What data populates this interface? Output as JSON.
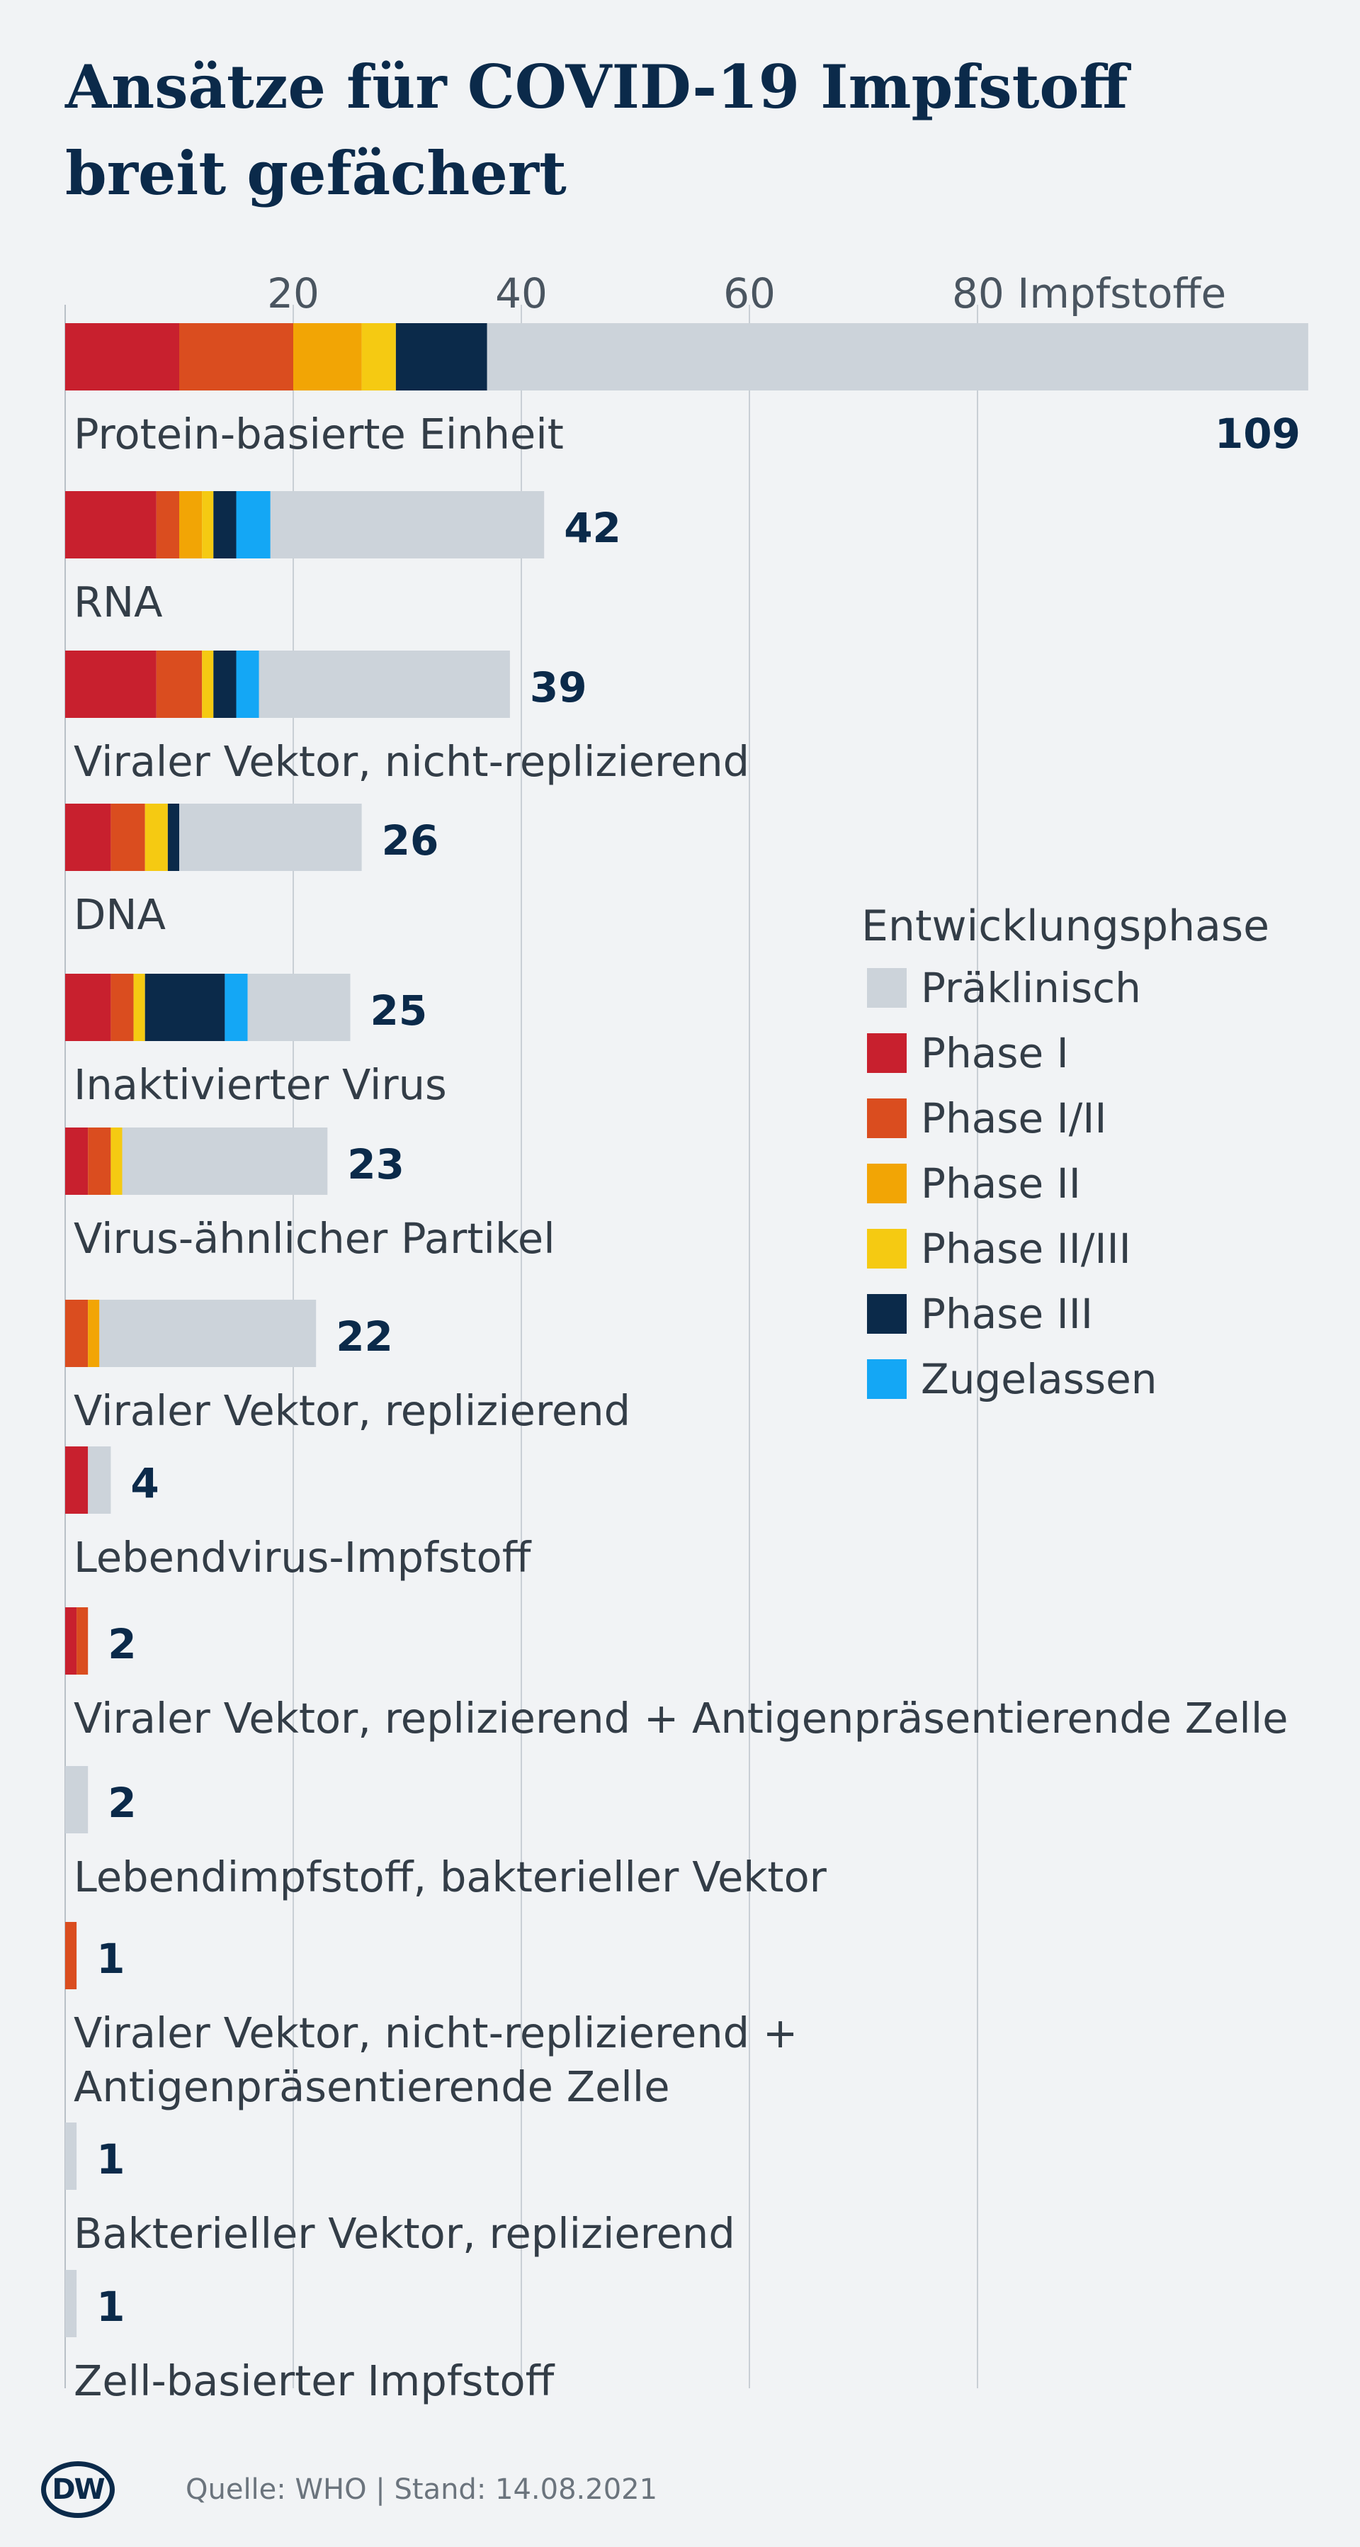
{
  "title_line1": "Ansätze für COVID-19 Impfstoff",
  "title_line2": "breit gefächert",
  "source": "Quelle: WHO | Stand: 14.08.2021",
  "logo_text": "DW",
  "chart_data": {
    "type": "bar",
    "orientation": "horizontal",
    "stacked": true,
    "x_ticks": [
      "20",
      "40",
      "60",
      "80 Impfstoffe"
    ],
    "x_tick_values": [
      20,
      40,
      60,
      80
    ],
    "xlim": [
      0,
      109
    ],
    "grid": true,
    "legend_title": "Entwicklungsphase",
    "legend_position": "right",
    "series": [
      {
        "name": "Präklinisch",
        "color": "#ccd3da"
      },
      {
        "name": "Phase I",
        "color": "#c8202e"
      },
      {
        "name": "Phase I/II",
        "color": "#da4d1f"
      },
      {
        "name": "Phase II",
        "color": "#f2a505"
      },
      {
        "name": "Phase II/III",
        "color": "#f5ca12"
      },
      {
        "name": "Phase III",
        "color": "#0b2a4a"
      },
      {
        "name": "Zugelassen",
        "color": "#14a7f5"
      }
    ],
    "categories": [
      {
        "label": "Protein-basierte Einheit",
        "total": 109,
        "phases": {
          "Phase I": 10,
          "Phase I/II": 10,
          "Phase II": 6,
          "Phase II/III": 3,
          "Phase III": 8,
          "Zugelassen": 0,
          "Präklinisch": 72
        }
      },
      {
        "label": "RNA",
        "total": 42,
        "phases": {
          "Phase I": 8,
          "Phase I/II": 2,
          "Phase II": 2,
          "Phase II/III": 1,
          "Phase III": 2,
          "Zugelassen": 3,
          "Präklinisch": 24
        }
      },
      {
        "label": "Viraler Vektor, nicht-replizierend",
        "total": 39,
        "phases": {
          "Phase I": 8,
          "Phase I/II": 4,
          "Phase II": 0,
          "Phase II/III": 1,
          "Phase III": 2,
          "Zugelassen": 2,
          "Präklinisch": 22
        }
      },
      {
        "label": "DNA",
        "total": 26,
        "phases": {
          "Phase I": 4,
          "Phase I/II": 3,
          "Phase II": 0,
          "Phase II/III": 2,
          "Phase III": 1,
          "Zugelassen": 0,
          "Präklinisch": 16
        }
      },
      {
        "label": "Inaktivierter Virus",
        "total": 25,
        "phases": {
          "Phase I": 4,
          "Phase I/II": 2,
          "Phase II": 0,
          "Phase II/III": 1,
          "Phase III": 7,
          "Zugelassen": 2,
          "Präklinisch": 9
        }
      },
      {
        "label": "Virus-ähnlicher Partikel",
        "total": 23,
        "phases": {
          "Phase I": 2,
          "Phase I/II": 2,
          "Phase II": 0,
          "Phase II/III": 1,
          "Phase III": 0,
          "Zugelassen": 0,
          "Präklinisch": 18
        }
      },
      {
        "label": "Viraler Vektor, replizierend",
        "total": 22,
        "phases": {
          "Phase I": 0,
          "Phase I/II": 2,
          "Phase II": 1,
          "Phase II/III": 0,
          "Phase III": 0,
          "Zugelassen": 0,
          "Präklinisch": 19
        }
      },
      {
        "label": "Lebendvirus-Impfstoff",
        "total": 4,
        "phases": {
          "Phase I": 2,
          "Phase I/II": 0,
          "Phase II": 0,
          "Phase II/III": 0,
          "Phase III": 0,
          "Zugelassen": 0,
          "Präklinisch": 2
        }
      },
      {
        "label": "Viraler Vektor, replizierend + Antigenpräsentierende Zelle",
        "total": 2,
        "phases": {
          "Phase I": 1,
          "Phase I/II": 1,
          "Phase II": 0,
          "Phase II/III": 0,
          "Phase III": 0,
          "Zugelassen": 0,
          "Präklinisch": 0
        }
      },
      {
        "label": "Lebendimpfstoff, bakterieller Vektor",
        "total": 2,
        "phases": {
          "Phase I": 0,
          "Phase I/II": 0,
          "Phase II": 0,
          "Phase II/III": 0,
          "Phase III": 0,
          "Zugelassen": 0,
          "Präklinisch": 2
        }
      },
      {
        "label": "Viraler Vektor, nicht-replizierend + Antigenpräsentierende Zelle",
        "label_lines": [
          "Viraler Vektor, nicht-replizierend +",
          "Antigenpräsentierende Zelle"
        ],
        "total": 1,
        "phases": {
          "Phase I": 0,
          "Phase I/II": 1,
          "Phase II": 0,
          "Phase II/III": 0,
          "Phase III": 0,
          "Zugelassen": 0,
          "Präklinisch": 0
        }
      },
      {
        "label": "Bakterieller Vektor, replizierend",
        "total": 1,
        "phases": {
          "Phase I": 0,
          "Phase I/II": 0,
          "Phase II": 0,
          "Phase II/III": 0,
          "Phase III": 0,
          "Zugelassen": 0,
          "Präklinisch": 1
        }
      },
      {
        "label": "Zell-basierter Impfstoff",
        "total": 1,
        "phases": {
          "Phase I": 0,
          "Phase I/II": 0,
          "Phase II": 0,
          "Phase II/III": 0,
          "Phase III": 0,
          "Zugelassen": 0,
          "Präklinisch": 1
        }
      }
    ],
    "stack_order": [
      "Phase I",
      "Phase I/II",
      "Phase II",
      "Phase II/III",
      "Phase III",
      "Zugelassen",
      "Präklinisch"
    ]
  }
}
